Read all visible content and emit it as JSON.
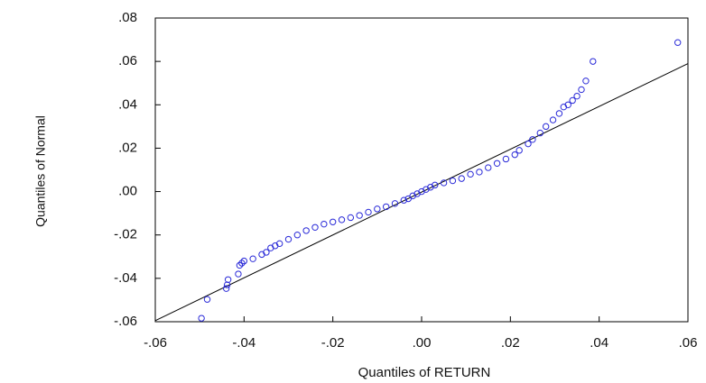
{
  "chart_data": {
    "type": "scatter",
    "xlabel": "Quantiles of RETURN",
    "ylabel": "Quantiles of Normal",
    "xlim": [
      -0.06,
      0.06
    ],
    "ylim": [
      -0.06,
      0.08
    ],
    "xticks": [
      {
        "value": -0.06,
        "label": "-.06"
      },
      {
        "value": -0.04,
        "label": "-.04"
      },
      {
        "value": -0.02,
        "label": "-.02"
      },
      {
        "value": 0,
        "label": ".00"
      },
      {
        "value": 0.02,
        "label": ".02"
      },
      {
        "value": 0.04,
        "label": ".04"
      },
      {
        "value": 0.06,
        "label": ".06"
      }
    ],
    "yticks": [
      {
        "value": -0.06,
        "label": "-.06"
      },
      {
        "value": -0.04,
        "label": "-.04"
      },
      {
        "value": -0.02,
        "label": "-.02"
      },
      {
        "value": 0,
        "label": ".00"
      },
      {
        "value": 0.02,
        "label": ".02"
      },
      {
        "value": 0.04,
        "label": ".04"
      },
      {
        "value": 0.06,
        "label": ".06"
      },
      {
        "value": 0.08,
        "label": ".08"
      }
    ],
    "grid": false,
    "color": "#2a2ad8",
    "x": [
      -0.0496,
      -0.0483,
      -0.044,
      -0.0438,
      -0.0436,
      -0.0413,
      -0.041,
      -0.0405,
      -0.04,
      -0.038,
      -0.036,
      -0.035,
      -0.034,
      -0.033,
      -0.032,
      -0.03,
      -0.028,
      -0.026,
      -0.024,
      -0.022,
      -0.02,
      -0.018,
      -0.016,
      -0.014,
      -0.012,
      -0.01,
      -0.008,
      -0.006,
      -0.004,
      -0.003,
      -0.002,
      -0.001,
      0,
      0.001,
      0.002,
      0.003,
      0.005,
      0.007,
      0.009,
      0.011,
      0.013,
      0.015,
      0.017,
      0.019,
      0.021,
      0.022,
      0.024,
      0.025,
      0.0267,
      0.028,
      0.0296,
      0.031,
      0.032,
      0.033,
      0.034,
      0.035,
      0.036,
      0.037,
      0.0386,
      0.0577
    ],
    "values": [
      -0.0584,
      -0.0497,
      -0.0447,
      -0.043,
      -0.0406,
      -0.038,
      -0.034,
      -0.033,
      -0.032,
      -0.031,
      -0.029,
      -0.028,
      -0.026,
      -0.025,
      -0.024,
      -0.022,
      -0.02,
      -0.018,
      -0.0165,
      -0.015,
      -0.014,
      -0.013,
      -0.012,
      -0.011,
      -0.0095,
      -0.008,
      -0.007,
      -0.0055,
      -0.004,
      -0.0033,
      -0.002,
      -0.001,
      0,
      0.001,
      0.002,
      0.003,
      0.004,
      0.005,
      0.006,
      0.008,
      0.009,
      0.011,
      0.013,
      0.015,
      0.017,
      0.019,
      0.022,
      0.024,
      0.027,
      0.03,
      0.033,
      0.036,
      0.039,
      0.04,
      0.042,
      0.044,
      0.047,
      0.051,
      0.06,
      0.0687
    ],
    "reference_line": {
      "x": [
        -0.06,
        0.06
      ],
      "y": [
        -0.0595,
        0.059
      ],
      "color": "#000000"
    }
  }
}
